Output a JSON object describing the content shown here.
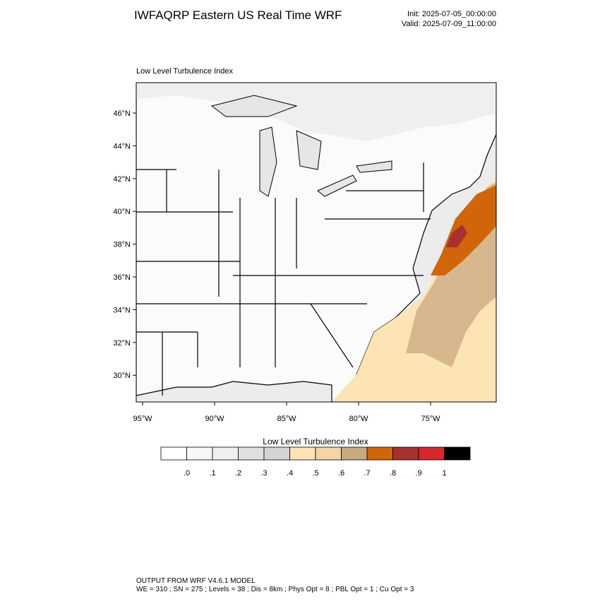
{
  "header": {
    "title": "IWFAQRP Eastern US Real Time WRF",
    "init": "Init: 2025-07-05_00:00:00",
    "valid": "Valid: 2025-07-09_11:00:00"
  },
  "map": {
    "subtitle": "Low Level Turbulence Index",
    "lat_labels": [
      "46°N",
      "44°N",
      "42°N",
      "40°N",
      "38°N",
      "36°N",
      "34°N",
      "32°N",
      "30°N"
    ],
    "lon_labels": [
      "95°W",
      "90°W",
      "85°W",
      "80°W",
      "75°W"
    ]
  },
  "colorbar": {
    "title": "Low Level Turbulence Index",
    "colors": [
      "#ffffff",
      "#f7f7f7",
      "#efefef",
      "#e0e0e0",
      "#d4d4d4",
      "#fde4b4",
      "#f5d3a6",
      "#c8a882",
      "#d0650a",
      "#a8302e",
      "#d4272e",
      "#000000"
    ],
    "labels": [
      ".0",
      ".1",
      ".2",
      ".3",
      ".4",
      ".5",
      ".6",
      ".7",
      ".8",
      ".9",
      "1"
    ]
  },
  "footer": {
    "line1": "OUTPUT FROM WRF V4.6.1 MODEL",
    "line2": "WE = 310 ; SN = 275 ; Levels = 38 ; Dis = 8km ; Phys Opt = 8 ; PBL Opt = 1 ; Cu Opt = 3"
  }
}
